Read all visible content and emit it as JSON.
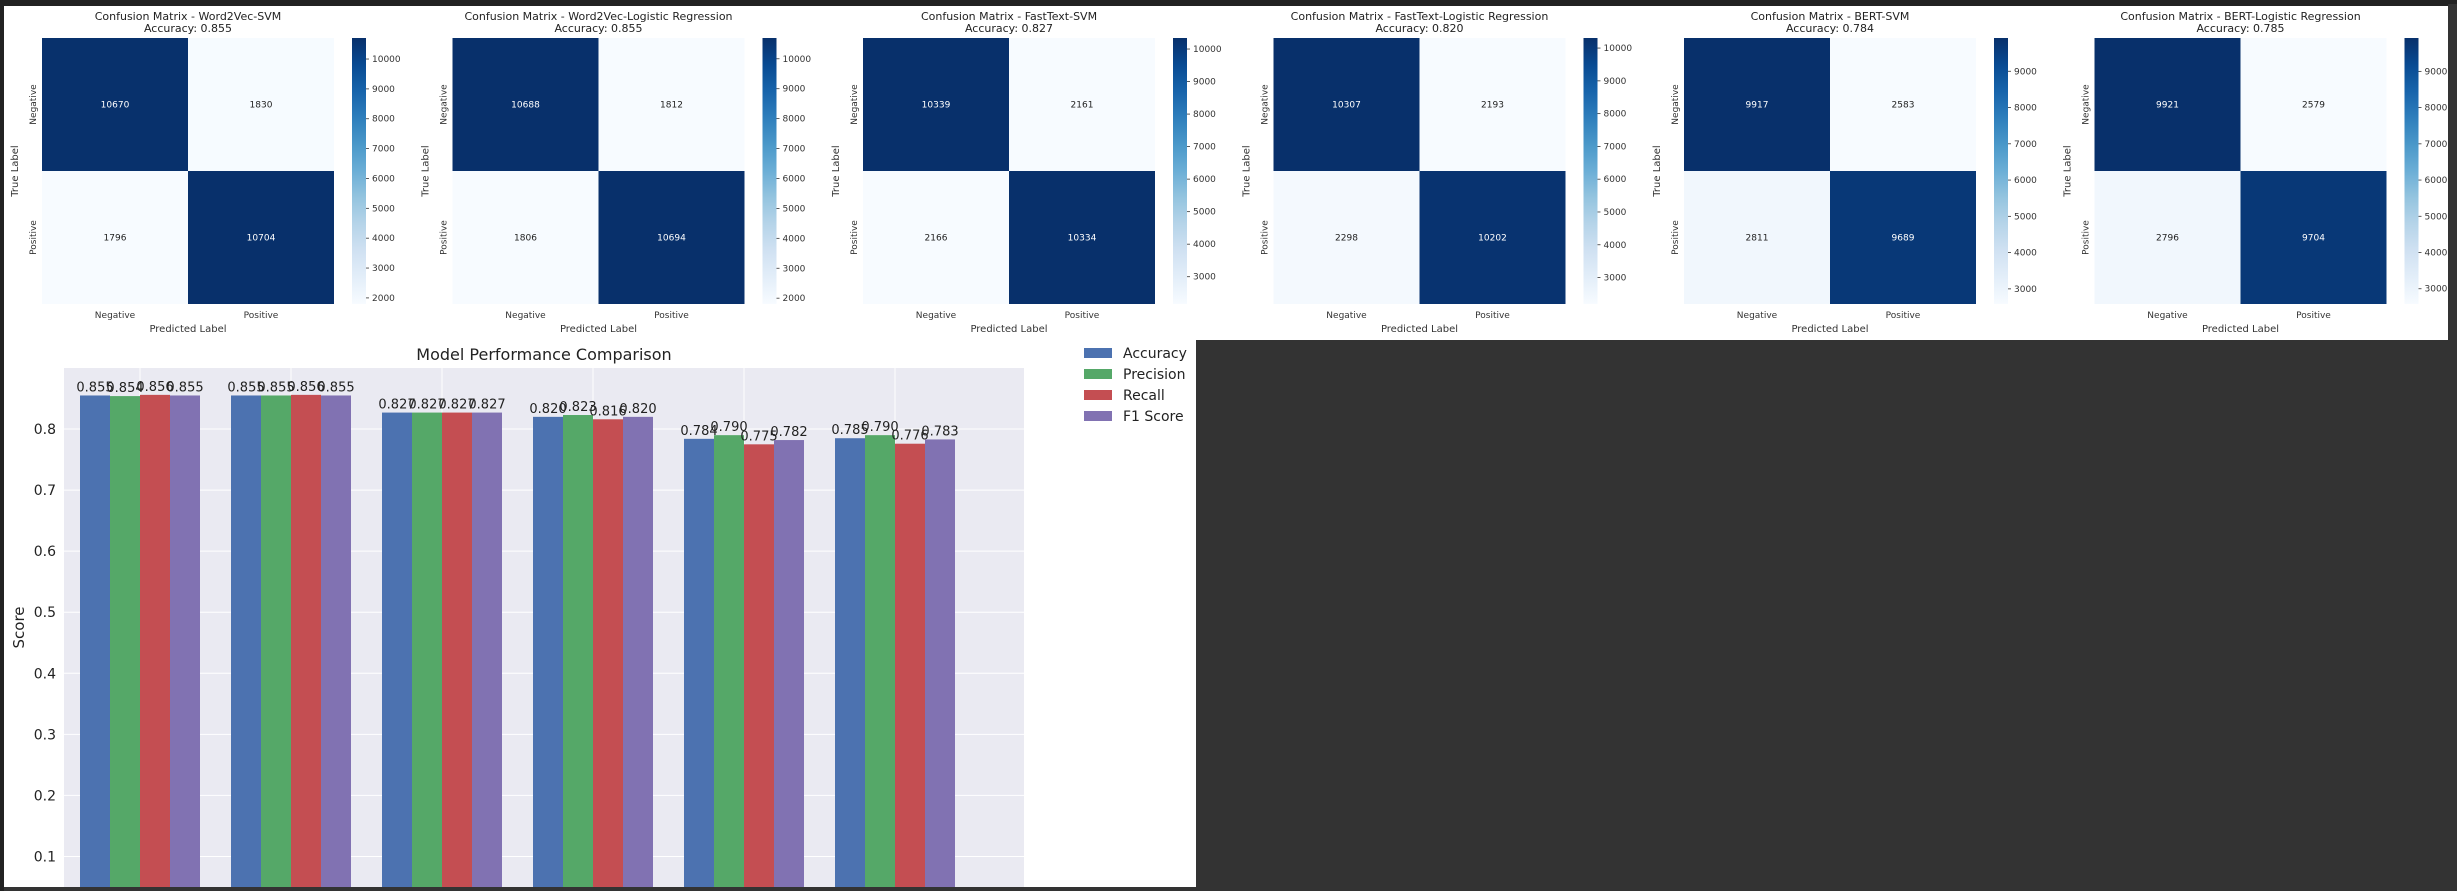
{
  "chart_data": [
    {
      "type": "heatmap",
      "title": "Confusion Matrix - Word2Vec-SVM",
      "subtitle": "Accuracy: 0.855",
      "xlabel": "Predicted Label",
      "ylabel": "True Label",
      "x_categories": [
        "Negative",
        "Positive"
      ],
      "y_categories": [
        "Negative",
        "Positive"
      ],
      "matrix": [
        [
          10670,
          1830
        ],
        [
          1796,
          10704
        ]
      ],
      "colorbar_ticks": [
        2000,
        3000,
        4000,
        5000,
        6000,
        7000,
        8000,
        9000,
        10000
      ],
      "colormap": "Blues"
    },
    {
      "type": "heatmap",
      "title": "Confusion Matrix - Word2Vec-Logistic Regression",
      "subtitle": "Accuracy: 0.855",
      "xlabel": "Predicted Label",
      "ylabel": "True Label",
      "x_categories": [
        "Negative",
        "Positive"
      ],
      "y_categories": [
        "Negative",
        "Positive"
      ],
      "matrix": [
        [
          10688,
          1812
        ],
        [
          1806,
          10694
        ]
      ],
      "colorbar_ticks": [
        2000,
        3000,
        4000,
        5000,
        6000,
        7000,
        8000,
        9000,
        10000
      ],
      "colormap": "Blues"
    },
    {
      "type": "heatmap",
      "title": "Confusion Matrix - FastText-SVM",
      "subtitle": "Accuracy: 0.827",
      "xlabel": "Predicted Label",
      "ylabel": "True Label",
      "x_categories": [
        "Negative",
        "Positive"
      ],
      "y_categories": [
        "Negative",
        "Positive"
      ],
      "matrix": [
        [
          10339,
          2161
        ],
        [
          2166,
          10334
        ]
      ],
      "colorbar_ticks": [
        3000,
        4000,
        5000,
        6000,
        7000,
        8000,
        9000,
        10000
      ],
      "colormap": "Blues"
    },
    {
      "type": "heatmap",
      "title": "Confusion Matrix - FastText-Logistic Regression",
      "subtitle": "Accuracy: 0.820",
      "xlabel": "Predicted Label",
      "ylabel": "True Label",
      "x_categories": [
        "Negative",
        "Positive"
      ],
      "y_categories": [
        "Negative",
        "Positive"
      ],
      "matrix": [
        [
          10307,
          2193
        ],
        [
          2298,
          10202
        ]
      ],
      "colorbar_ticks": [
        3000,
        4000,
        5000,
        6000,
        7000,
        8000,
        9000,
        10000
      ],
      "colormap": "Blues"
    },
    {
      "type": "heatmap",
      "title": "Confusion Matrix - BERT-SVM",
      "subtitle": "Accuracy: 0.784",
      "xlabel": "Predicted Label",
      "ylabel": "True Label",
      "x_categories": [
        "Negative",
        "Positive"
      ],
      "y_categories": [
        "Negative",
        "Positive"
      ],
      "matrix": [
        [
          9917,
          2583
        ],
        [
          2811,
          9689
        ]
      ],
      "colorbar_ticks": [
        3000,
        4000,
        5000,
        6000,
        7000,
        8000,
        9000
      ],
      "colormap": "Blues"
    },
    {
      "type": "heatmap",
      "title": "Confusion Matrix - BERT-Logistic Regression",
      "subtitle": "Accuracy: 0.785",
      "xlabel": "Predicted Label",
      "ylabel": "True Label",
      "x_categories": [
        "Negative",
        "Positive"
      ],
      "y_categories": [
        "Negative",
        "Positive"
      ],
      "matrix": [
        [
          9921,
          2579
        ],
        [
          2796,
          9704
        ]
      ],
      "colorbar_ticks": [
        3000,
        4000,
        5000,
        6000,
        7000,
        8000,
        9000
      ],
      "colormap": "Blues"
    },
    {
      "type": "bar",
      "title": "Model Performance Comparison",
      "xlabel": "",
      "ylabel": "Score",
      "ylim": [
        0.05,
        0.9
      ],
      "yticks": [
        0.1,
        0.2,
        0.3,
        0.4,
        0.5,
        0.6,
        0.7,
        0.8
      ],
      "grid": true,
      "legend_position": "outside-right",
      "categories": [
        "",
        "",
        "",
        "",
        "",
        ""
      ],
      "series": [
        {
          "name": "Accuracy",
          "color": "#4c72b0",
          "values": [
            0.855,
            0.855,
            0.827,
            0.82,
            0.784,
            0.785
          ],
          "labels": [
            "0.855",
            "0.855",
            "0.827",
            "0.820",
            "0.784",
            "0.785"
          ]
        },
        {
          "name": "Precision",
          "color": "#55a868",
          "values": [
            0.854,
            0.855,
            0.827,
            0.823,
            0.79,
            0.79
          ],
          "labels": [
            "0.854",
            "0.855",
            "0.827",
            "0.823",
            "0.790",
            "0.790"
          ]
        },
        {
          "name": "Recall",
          "color": "#c44e52",
          "values": [
            0.856,
            0.856,
            0.827,
            0.816,
            0.775,
            0.776
          ],
          "labels": [
            "0.856",
            "0.856",
            "0.827",
            "0.816",
            "0.775",
            "0.776"
          ]
        },
        {
          "name": "F1 Score",
          "color": "#8172b2",
          "values": [
            0.855,
            0.855,
            0.827,
            0.82,
            0.782,
            0.783
          ],
          "labels": [
            "0.855",
            "0.855",
            "0.827",
            "0.820",
            "0.782",
            "0.783"
          ]
        }
      ]
    }
  ]
}
